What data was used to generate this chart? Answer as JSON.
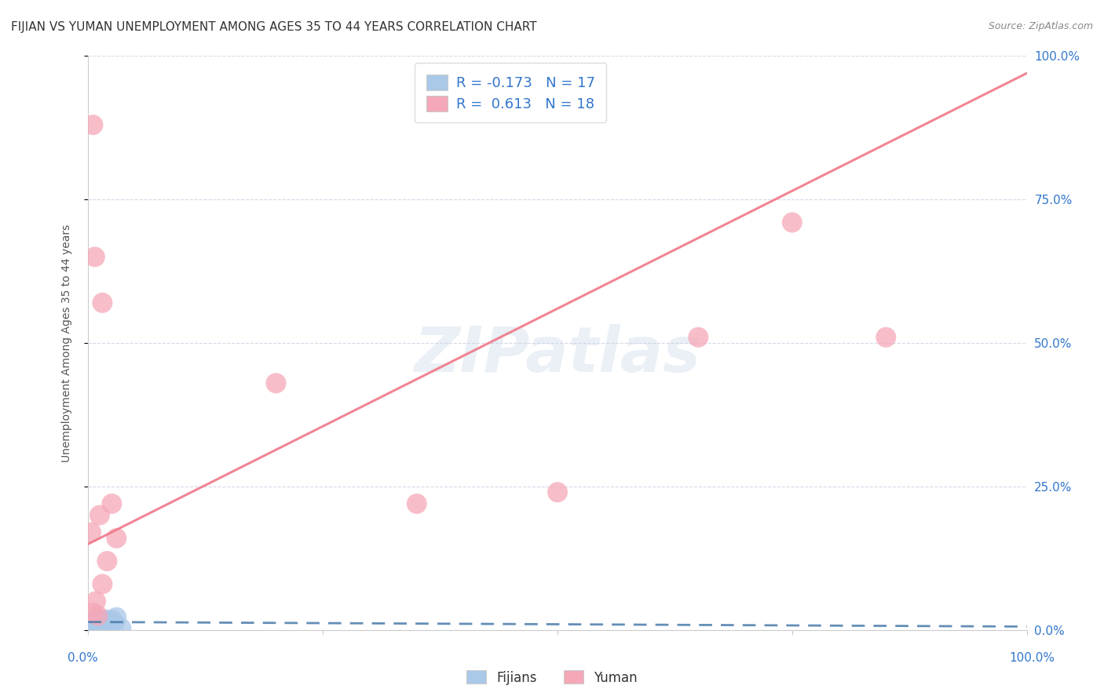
{
  "title": "FIJIAN VS YUMAN UNEMPLOYMENT AMONG AGES 35 TO 44 YEARS CORRELATION CHART",
  "source": "Source: ZipAtlas.com",
  "ylabel": "Unemployment Among Ages 35 to 44 years",
  "ytick_labels": [
    "0.0%",
    "25.0%",
    "50.0%",
    "75.0%",
    "100.0%"
  ],
  "ytick_values": [
    0,
    25,
    50,
    75,
    100
  ],
  "legend_fijians": "Fijians",
  "legend_yuman": "Yuman",
  "fijian_R": -0.173,
  "fijian_N": 17,
  "yuman_R": 0.613,
  "yuman_N": 18,
  "fijian_color": "#aac8e8",
  "yuman_color": "#f5a8b8",
  "fijian_line_color": "#4a7aaa",
  "yuman_line_color": "#f07888",
  "background_color": "#ffffff",
  "grid_color": "#d8d8e8",
  "fijian_x": [
    0.3,
    0.5,
    0.8,
    1.0,
    1.2,
    1.5,
    1.8,
    2.0,
    2.2,
    2.5,
    2.8,
    3.0,
    3.5,
    0.2,
    0.7,
    1.3,
    1.0
  ],
  "fijian_y": [
    0.8,
    1.5,
    1.0,
    2.0,
    1.5,
    1.0,
    1.8,
    1.5,
    0.5,
    1.8,
    1.2,
    2.2,
    0.3,
    0.5,
    1.2,
    1.8,
    0.8
  ],
  "yuman_x": [
    0.5,
    0.8,
    1.0,
    1.5,
    2.0,
    3.0,
    0.3,
    1.2,
    2.5,
    0.7,
    20.0,
    35.0,
    50.0,
    65.0,
    75.0,
    85.0,
    0.5,
    1.5
  ],
  "yuman_y": [
    3.0,
    5.0,
    2.5,
    8.0,
    12.0,
    16.0,
    17.0,
    20.0,
    22.0,
    65.0,
    43.0,
    22.0,
    24.0,
    51.0,
    71.0,
    51.0,
    88.0,
    57.0
  ],
  "yuman_line_intercept": 15.0,
  "yuman_line_slope": 0.82,
  "fijian_line_intercept": 1.4,
  "fijian_line_slope": -0.008,
  "watermark_text": "ZIPatlas",
  "title_fontsize": 11,
  "axis_label_fontsize": 10,
  "tick_fontsize": 11,
  "legend_fontsize": 13
}
